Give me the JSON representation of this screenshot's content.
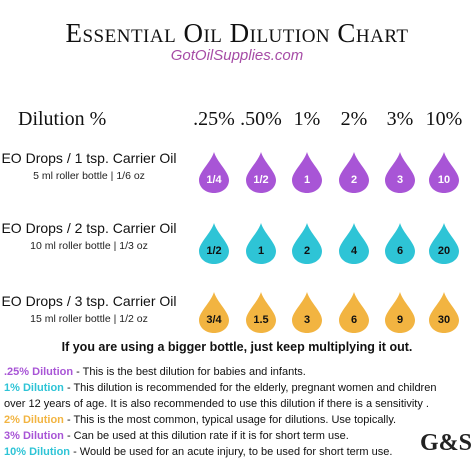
{
  "title": "Essential Oil Dilution Chart",
  "subtitle": "GotOilSupplies.com",
  "header_label": "Dilution %",
  "columns": [
    ".25%",
    ".50%",
    "1%",
    "2%",
    "3%",
    "10%"
  ],
  "rows": [
    {
      "label": "EO Drops / 1 tsp. Carrier Oil",
      "sublabel": "5 ml roller bottle | 1/6 oz",
      "color": "#a855d6",
      "text_color": "#ffffff",
      "values": [
        "1/4",
        "1/2",
        "1",
        "2",
        "3",
        "10"
      ]
    },
    {
      "label": "EO Drops / 2 tsp. Carrier Oil",
      "sublabel": "10 ml roller bottle | 1/3 oz",
      "color": "#2ec4d6",
      "text_color": "#111111",
      "values": [
        "1/2",
        "1",
        "2",
        "4",
        "6",
        "20"
      ]
    },
    {
      "label": "EO Drops / 3 tsp. Carrier Oil",
      "sublabel": "15 ml roller bottle | 1/2 oz",
      "color": "#f2b441",
      "text_color": "#111111",
      "values": [
        "3/4",
        "1.5",
        "3",
        "6",
        "9",
        "30"
      ]
    }
  ],
  "note": "If you are using a bigger bottle, just keep multiplying it out.",
  "legend": [
    {
      "tag": ".25% Dilution",
      "color": "#a855d6",
      "text": " - This is the best dilution for babies and infants."
    },
    {
      "tag": "1% Dilution",
      "color": "#2ec4d6",
      "text": " - This dilution is recommended for the elderly, pregnant women and children"
    },
    {
      "tag": "",
      "color": "#111111",
      "text": "over 12 years of age.  It is also recommended to use this dilution if there is a sensitivity ."
    },
    {
      "tag": "2% Dilution",
      "color": "#f2b441",
      "text": " -  This is the most common, typical usage for dilutions.  Use topically."
    },
    {
      "tag": "3% Dilution",
      "color": "#a855d6",
      "text": " - Can be used at this dilution rate if it is for short term use."
    },
    {
      "tag": "10% Dilution",
      "color": "#2ec4d6",
      "text": " - Would be used for an acute injury, to be used for short term use."
    }
  ],
  "logo_text": "G&S"
}
